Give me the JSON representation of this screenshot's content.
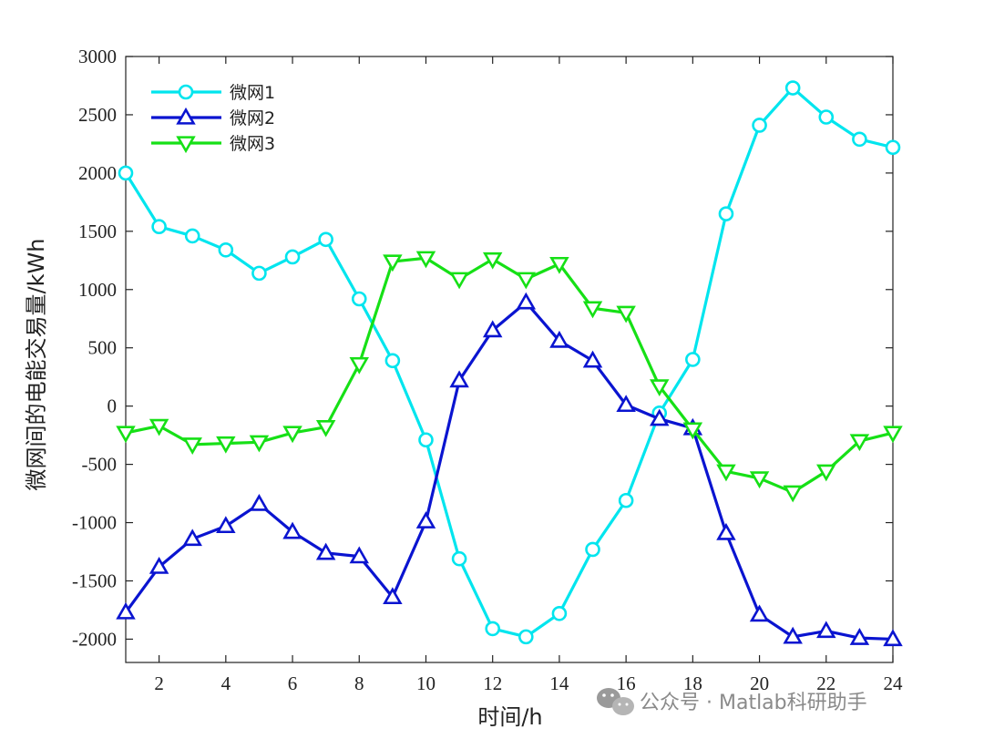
{
  "chart_data": {
    "type": "line",
    "xlabel": "时间/h",
    "ylabel": "微网间的电能交易量/kWh",
    "xlim": [
      1,
      24
    ],
    "ylim": [
      -2200,
      3000
    ],
    "xticks": [
      2,
      4,
      6,
      8,
      10,
      12,
      14,
      16,
      18,
      20,
      22,
      24
    ],
    "yticks": [
      -2000,
      -1500,
      -1000,
      -500,
      0,
      500,
      1000,
      1500,
      2000,
      2500,
      3000
    ],
    "legend_position": "top-left",
    "grid": false,
    "x": [
      1,
      2,
      3,
      4,
      5,
      6,
      7,
      8,
      9,
      10,
      11,
      12,
      13,
      14,
      15,
      16,
      17,
      18,
      19,
      20,
      21,
      22,
      23,
      24
    ],
    "series": [
      {
        "name": "微网1",
        "color": "#00e5ee",
        "marker": "circle",
        "values": [
          2000,
          1540,
          1460,
          1340,
          1140,
          1280,
          1430,
          920,
          390,
          -290,
          -1310,
          -1910,
          -1980,
          -1780,
          -1230,
          -810,
          -60,
          400,
          1650,
          2410,
          2730,
          2480,
          2290,
          2220
        ]
      },
      {
        "name": "微网2",
        "color": "#0a14d0",
        "marker": "triangle-up",
        "values": [
          -1770,
          -1380,
          -1140,
          -1030,
          -840,
          -1080,
          -1260,
          -1290,
          -1640,
          -990,
          220,
          650,
          890,
          560,
          390,
          10,
          -110,
          -190,
          -1090,
          -1790,
          -1980,
          -1930,
          -1990,
          -2000
        ]
      },
      {
        "name": "微网3",
        "color": "#16e016",
        "marker": "triangle-down",
        "values": [
          -230,
          -170,
          -330,
          -320,
          -310,
          -230,
          -180,
          360,
          1240,
          1270,
          1090,
          1260,
          1090,
          1220,
          840,
          800,
          170,
          -200,
          -560,
          -620,
          -740,
          -560,
          -300,
          -230
        ]
      }
    ]
  },
  "watermark": {
    "text": "公众号 · Matlab科研助手",
    "icon": "wechat-icon"
  }
}
